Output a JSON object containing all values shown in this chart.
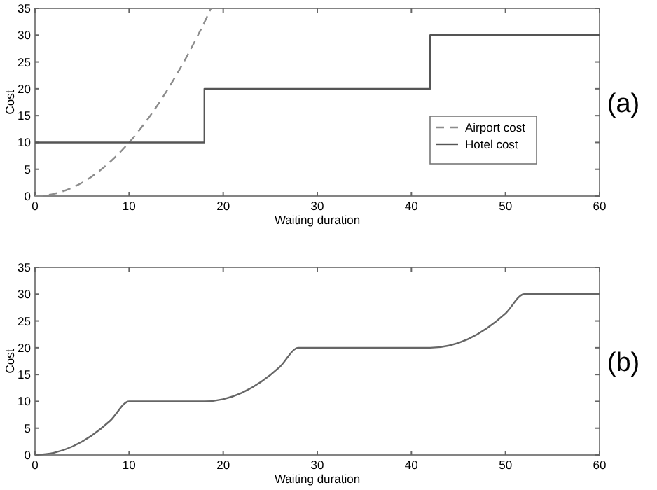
{
  "chart_data": [
    {
      "type": "line",
      "xlabel": "Waiting duration",
      "ylabel": "Cost",
      "xlim": [
        0,
        60
      ],
      "ylim": [
        0,
        35
      ],
      "xticks": [
        0,
        10,
        20,
        30,
        40,
        50,
        60
      ],
      "yticks": [
        0,
        5,
        10,
        15,
        20,
        25,
        30,
        35
      ],
      "legend": "right",
      "grid": false,
      "annotations": [
        "(a)"
      ],
      "series": [
        {
          "name": "Airport cost",
          "line_style": "dashed",
          "color": "#8c8c8c",
          "x": [
            0,
            2,
            4,
            6,
            8,
            10,
            12,
            14,
            16,
            18,
            18.7
          ],
          "values": [
            0,
            0.4,
            1.6,
            3.6,
            6.4,
            10,
            14.4,
            19.6,
            25.6,
            32.4,
            35
          ]
        },
        {
          "name": "Hotel cost",
          "type": "step",
          "line_style": "solid",
          "color": "#555555",
          "x": [
            0,
            18,
            42,
            60
          ],
          "values": [
            10,
            20,
            30,
            30
          ]
        }
      ]
    },
    {
      "type": "line",
      "xlabel": "Waiting duration",
      "ylabel": "Cost",
      "xlim": [
        0,
        60
      ],
      "ylim": [
        0,
        35
      ],
      "xticks": [
        0,
        10,
        20,
        30,
        40,
        50,
        60
      ],
      "yticks": [
        0,
        5,
        10,
        15,
        20,
        25,
        30,
        35
      ],
      "legend": false,
      "grid": false,
      "annotations": [
        "(b)"
      ],
      "series": [
        {
          "line_style": "solid",
          "color": "#666666",
          "x": [
            0,
            2,
            4,
            6,
            8,
            10,
            18,
            20,
            22,
            24,
            26,
            28,
            42,
            44,
            46,
            48,
            50,
            52,
            60
          ],
          "values": [
            0,
            0.4,
            1.6,
            3.6,
            6.4,
            10,
            10,
            10.4,
            11.6,
            13.6,
            16.4,
            20,
            20,
            20.4,
            21.6,
            23.6,
            26.4,
            30,
            30
          ]
        }
      ]
    }
  ]
}
